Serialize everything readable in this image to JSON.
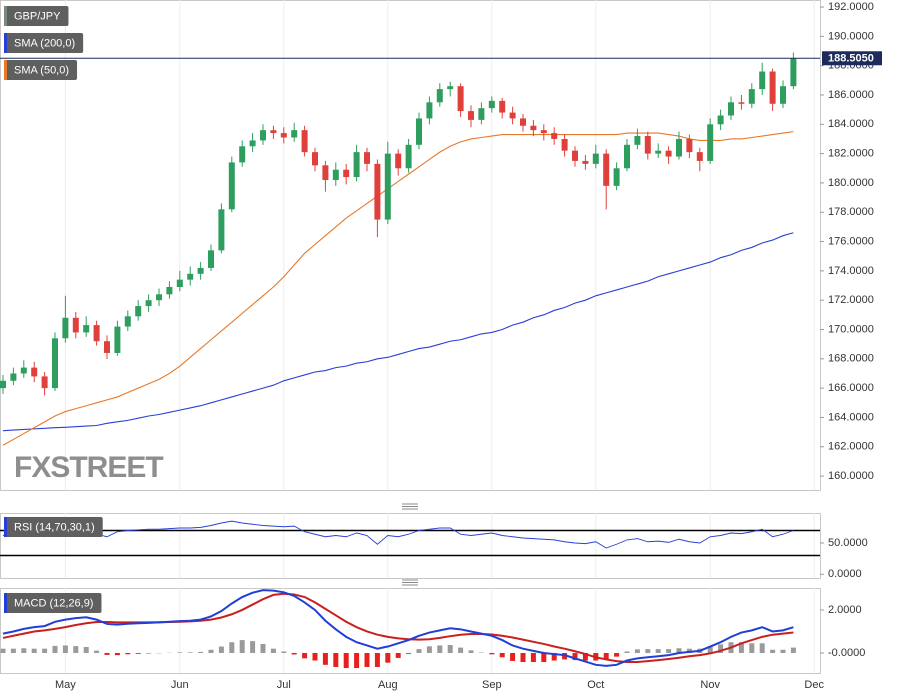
{
  "chart_data": [
    {
      "type": "candlestick",
      "title": "GBP/JPY",
      "watermark": "FXSTREET",
      "categories": [
        null,
        null,
        null,
        null,
        null,
        null,
        "May",
        null,
        null,
        null,
        null,
        null,
        null,
        null,
        null,
        null,
        null,
        "Jun",
        null,
        null,
        null,
        null,
        null,
        null,
        null,
        null,
        null,
        "Jul",
        null,
        null,
        null,
        null,
        null,
        null,
        null,
        null,
        null,
        "Aug",
        null,
        null,
        null,
        null,
        null,
        null,
        null,
        null,
        null,
        "Sep",
        null,
        null,
        null,
        null,
        null,
        null,
        null,
        null,
        null,
        "Oct",
        null,
        null,
        null,
        null,
        null,
        null,
        null,
        null,
        null,
        null,
        "Nov",
        null,
        null,
        null,
        null,
        null,
        null,
        null,
        null,
        null,
        "Dec"
      ],
      "open": [
        166.0,
        166.5,
        167.0,
        167.4,
        166.8,
        166.0,
        169.4,
        170.8,
        169.8,
        170.3,
        169.2,
        168.4,
        170.2,
        170.9,
        171.6,
        172.0,
        172.4,
        172.9,
        173.4,
        173.8,
        174.2,
        175.4,
        178.2,
        181.4,
        182.5,
        182.9,
        183.6,
        183.4,
        183.1,
        183.6,
        182.1,
        181.2,
        180.2,
        180.9,
        180.4,
        182.1,
        181.3,
        177.5,
        182.0,
        181.0,
        182.6,
        184.4,
        185.5,
        186.4,
        186.6,
        184.9,
        184.3,
        185.1,
        185.6,
        184.8,
        184.4,
        183.9,
        183.6,
        183.4,
        183.0,
        182.2,
        181.5,
        181.3,
        182.0,
        179.8,
        181.0,
        182.6,
        183.2,
        182.0,
        182.2,
        181.8,
        183.0,
        182.1,
        181.5,
        184.0,
        184.6,
        185.5,
        185.4,
        186.4,
        187.6,
        185.4,
        186.6,
        null,
        null
      ],
      "high": [
        166.9,
        167.4,
        167.9,
        167.8,
        167.1,
        169.8,
        172.3,
        171.2,
        170.9,
        170.6,
        169.6,
        170.6,
        171.3,
        172.0,
        172.4,
        172.8,
        173.3,
        174.0,
        174.3,
        174.6,
        175.8,
        178.6,
        181.8,
        182.9,
        183.4,
        184.0,
        183.9,
        183.8,
        184.1,
        183.9,
        182.4,
        181.5,
        181.4,
        181.3,
        182.6,
        182.4,
        181.6,
        182.8,
        182.3,
        183.0,
        184.8,
        185.9,
        186.8,
        186.9,
        186.8,
        185.3,
        185.5,
        185.9,
        185.8,
        185.2,
        184.7,
        184.3,
        184.0,
        183.8,
        183.3,
        182.5,
        181.9,
        182.6,
        182.3,
        181.4,
        183.0,
        183.7,
        183.5,
        182.7,
        182.5,
        183.5,
        183.3,
        182.4,
        184.4,
        185.0,
        185.9,
        186.0,
        186.8,
        188.2,
        187.8,
        187.0,
        188.9,
        null,
        null
      ],
      "low": [
        165.6,
        166.2,
        166.7,
        166.4,
        165.5,
        165.8,
        169.1,
        169.4,
        169.5,
        168.9,
        168.0,
        168.2,
        169.9,
        170.6,
        171.2,
        171.6,
        172.1,
        172.6,
        173.0,
        173.4,
        174.0,
        175.2,
        178.0,
        181.1,
        182.1,
        182.6,
        183.0,
        182.7,
        182.8,
        181.8,
        180.8,
        179.4,
        179.8,
        179.9,
        180.1,
        180.8,
        176.3,
        177.2,
        180.5,
        180.7,
        182.3,
        184.0,
        185.2,
        185.9,
        184.5,
        183.8,
        184.0,
        184.8,
        184.4,
        184.0,
        183.5,
        183.2,
        182.9,
        182.6,
        181.8,
        181.1,
        180.9,
        181.0,
        178.2,
        179.5,
        180.8,
        182.3,
        181.6,
        181.7,
        181.3,
        181.6,
        181.7,
        180.8,
        181.3,
        183.6,
        184.3,
        185.0,
        185.1,
        186.0,
        184.9,
        185.1,
        186.4,
        null,
        null
      ],
      "close": [
        166.5,
        167.0,
        167.4,
        166.8,
        166.0,
        169.4,
        170.8,
        169.8,
        170.3,
        169.2,
        168.4,
        170.2,
        170.9,
        171.6,
        172.0,
        172.4,
        172.9,
        173.4,
        173.8,
        174.2,
        175.4,
        178.2,
        181.4,
        182.5,
        182.9,
        183.6,
        183.4,
        183.1,
        183.6,
        182.1,
        181.2,
        180.2,
        180.9,
        180.4,
        182.1,
        181.3,
        177.5,
        182.0,
        181.0,
        182.6,
        184.4,
        185.5,
        186.4,
        186.6,
        184.9,
        184.3,
        185.1,
        185.6,
        184.8,
        184.4,
        183.9,
        183.6,
        183.4,
        183.0,
        182.2,
        181.5,
        181.3,
        182.0,
        179.8,
        181.0,
        182.6,
        183.2,
        182.0,
        182.2,
        181.8,
        183.0,
        182.1,
        181.5,
        184.0,
        184.6,
        185.5,
        185.4,
        186.4,
        187.6,
        185.4,
        186.6,
        188.505,
        null,
        null
      ],
      "up_color": "#2e9e5e",
      "down_color": "#e0403c",
      "series": [
        {
          "name": "SMA (200,0)",
          "color": "#2a3fd6",
          "values": [
            163.1,
            163.14,
            163.18,
            163.22,
            163.26,
            163.3,
            163.33,
            163.37,
            163.41,
            163.45,
            163.6,
            163.7,
            163.8,
            163.95,
            164.1,
            164.2,
            164.35,
            164.5,
            164.65,
            164.8,
            165.0,
            165.2,
            165.4,
            165.6,
            165.8,
            166.0,
            166.2,
            166.5,
            166.7,
            166.9,
            167.1,
            167.2,
            167.4,
            167.5,
            167.7,
            167.8,
            168.0,
            168.1,
            168.3,
            168.5,
            168.7,
            168.8,
            169.0,
            169.2,
            169.3,
            169.5,
            169.7,
            169.8,
            170.0,
            170.3,
            170.5,
            170.8,
            171.0,
            171.3,
            171.5,
            171.8,
            172.0,
            172.3,
            172.5,
            172.7,
            172.9,
            173.1,
            173.3,
            173.6,
            173.8,
            174.0,
            174.2,
            174.4,
            174.6,
            174.9,
            175.1,
            175.4,
            175.6,
            175.9,
            176.1,
            176.4,
            176.6,
            null,
            null
          ]
        },
        {
          "name": "SMA (50,0)",
          "color": "#e8782a",
          "values": [
            162.1,
            162.5,
            162.9,
            163.3,
            163.7,
            164.1,
            164.4,
            164.6,
            164.8,
            165.0,
            165.2,
            165.4,
            165.7,
            166.0,
            166.3,
            166.6,
            167.0,
            167.5,
            168.1,
            168.7,
            169.3,
            169.9,
            170.5,
            171.1,
            171.7,
            172.3,
            172.9,
            173.6,
            174.4,
            175.2,
            175.8,
            176.4,
            177.0,
            177.6,
            178.1,
            178.6,
            179.1,
            179.6,
            180.1,
            180.6,
            181.1,
            181.6,
            182.1,
            182.5,
            182.8,
            183.0,
            183.1,
            183.2,
            183.3,
            183.3,
            183.3,
            183.3,
            183.3,
            183.3,
            183.3,
            183.3,
            183.3,
            183.3,
            183.3,
            183.3,
            183.4,
            183.4,
            183.4,
            183.4,
            183.3,
            183.2,
            183.0,
            182.9,
            182.9,
            182.9,
            183.0,
            183.0,
            183.1,
            183.2,
            183.3,
            183.4,
            183.5,
            null,
            null
          ]
        }
      ],
      "last_price": {
        "value": 188.505,
        "label": "188.5050"
      },
      "ylim": [
        159.05,
        192.48
      ],
      "yticks": [
        {
          "value": 192,
          "label": "192.0000"
        },
        {
          "value": 190,
          "label": "190.0000"
        },
        {
          "value": 188,
          "label": "188.0000"
        },
        {
          "value": 186,
          "label": "186.0000"
        },
        {
          "value": 184,
          "label": "184.0000"
        },
        {
          "value": 182,
          "label": "182.0000"
        },
        {
          "value": 180,
          "label": "180.0000"
        },
        {
          "value": 178,
          "label": "178.0000"
        },
        {
          "value": 176,
          "label": "176.0000"
        },
        {
          "value": 174,
          "label": "174.0000"
        },
        {
          "value": 172,
          "label": "172.0000"
        },
        {
          "value": 170,
          "label": "170.0000"
        },
        {
          "value": 168,
          "label": "168.0000"
        },
        {
          "value": 166,
          "label": "166.0000"
        },
        {
          "value": 164,
          "label": "164.0000"
        },
        {
          "value": 162,
          "label": "162.0000"
        },
        {
          "value": 160,
          "label": "160.0000"
        }
      ],
      "grid": true
    },
    {
      "type": "line",
      "title": "RSI (14,70,30,1)",
      "color": "#2a3fd6",
      "values": [
        62,
        66,
        68,
        64,
        60,
        72,
        74,
        68,
        69,
        64,
        60,
        68,
        70,
        71,
        72,
        72,
        73,
        74,
        74,
        75,
        78,
        82,
        85,
        82,
        80,
        78,
        77,
        76,
        77,
        68,
        64,
        60,
        62,
        60,
        66,
        62,
        48,
        62,
        60,
        64,
        70,
        72,
        74,
        74,
        64,
        62,
        64,
        66,
        62,
        60,
        58,
        57,
        56,
        55,
        52,
        50,
        49,
        52,
        42,
        48,
        55,
        57,
        52,
        53,
        51,
        56,
        52,
        50,
        60,
        62,
        66,
        65,
        68,
        72,
        60,
        64,
        70,
        null,
        null
      ],
      "levels": [
        70,
        30
      ],
      "ylim": [
        -6,
        98
      ],
      "yticks": [
        {
          "value": 50,
          "label": "50.0000"
        },
        {
          "value": 0,
          "label": "0.0000"
        }
      ]
    },
    {
      "type": "macd",
      "title": "MACD (12,26,9)",
      "macd": {
        "color": "#1f3fd8",
        "values": [
          0.9,
          1.0,
          1.12,
          1.2,
          1.25,
          1.45,
          1.55,
          1.62,
          1.66,
          1.55,
          1.35,
          1.32,
          1.36,
          1.38,
          1.4,
          1.42,
          1.45,
          1.48,
          1.5,
          1.55,
          1.7,
          1.95,
          2.3,
          2.6,
          2.8,
          2.92,
          2.9,
          2.82,
          2.65,
          2.35,
          2.0,
          1.5,
          1.1,
          0.75,
          0.5,
          0.35,
          0.2,
          0.3,
          0.45,
          0.6,
          0.8,
          0.95,
          1.05,
          1.15,
          1.1,
          1.0,
          0.9,
          0.8,
          0.6,
          0.35,
          0.2,
          0.1,
          0.0,
          -0.05,
          -0.1,
          -0.25,
          -0.4,
          -0.55,
          -0.6,
          -0.55,
          -0.35,
          -0.25,
          -0.2,
          -0.15,
          -0.1,
          0.0,
          0.05,
          0.1,
          0.3,
          0.5,
          0.75,
          0.95,
          1.05,
          1.2,
          1.0,
          1.05,
          1.2,
          null,
          null
        ]
      },
      "signal": {
        "color": "#c8201e",
        "values": [
          0.7,
          0.8,
          0.9,
          1.0,
          1.05,
          1.12,
          1.2,
          1.3,
          1.38,
          1.44,
          1.44,
          1.42,
          1.42,
          1.42,
          1.42,
          1.43,
          1.44,
          1.45,
          1.47,
          1.5,
          1.55,
          1.65,
          1.8,
          2.0,
          2.25,
          2.5,
          2.7,
          2.75,
          2.72,
          2.6,
          2.35,
          2.05,
          1.75,
          1.45,
          1.2,
          1.0,
          0.85,
          0.75,
          0.68,
          0.64,
          0.62,
          0.64,
          0.7,
          0.78,
          0.85,
          0.88,
          0.88,
          0.86,
          0.8,
          0.72,
          0.62,
          0.52,
          0.42,
          0.3,
          0.2,
          0.08,
          -0.05,
          -0.2,
          -0.3,
          -0.38,
          -0.42,
          -0.42,
          -0.38,
          -0.33,
          -0.28,
          -0.22,
          -0.15,
          -0.1,
          -0.02,
          0.1,
          0.25,
          0.45,
          0.6,
          0.75,
          0.85,
          0.9,
          0.95,
          null,
          null
        ]
      },
      "histogram": {
        "positive_color": "#9a9a9a",
        "negative_color": "#e8201c",
        "values": [
          0.2,
          0.2,
          0.22,
          0.2,
          0.2,
          0.33,
          0.35,
          0.32,
          0.28,
          0.11,
          -0.09,
          -0.1,
          -0.06,
          -0.04,
          -0.02,
          -0.01,
          0.01,
          0.03,
          0.03,
          0.05,
          0.15,
          0.3,
          0.5,
          0.6,
          0.55,
          0.42,
          0.2,
          0.07,
          -0.07,
          -0.25,
          -0.35,
          -0.55,
          -0.65,
          -0.7,
          -0.7,
          -0.65,
          -0.65,
          -0.45,
          -0.23,
          -0.04,
          0.18,
          0.31,
          0.35,
          0.37,
          0.25,
          0.12,
          0.02,
          -0.06,
          -0.2,
          -0.37,
          -0.42,
          -0.42,
          -0.42,
          -0.35,
          -0.3,
          -0.33,
          -0.35,
          -0.35,
          -0.3,
          -0.17,
          0.07,
          0.17,
          0.18,
          0.18,
          0.18,
          0.22,
          0.2,
          0.2,
          0.32,
          0.4,
          0.5,
          0.5,
          0.45,
          0.45,
          0.15,
          0.15,
          0.25,
          null,
          null
        ]
      },
      "ylim": [
        -0.93,
        3.02
      ],
      "yticks": [
        {
          "value": 2,
          "label": "2.0000"
        },
        {
          "value": 0,
          "label": "-0.0000"
        }
      ]
    }
  ]
}
